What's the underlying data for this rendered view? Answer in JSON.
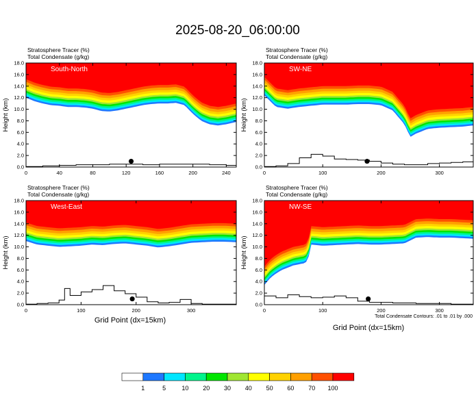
{
  "title": "2025-08-20_06:00:00",
  "panel_headers": {
    "line1": "Stratosphere Tracer   (%)",
    "line2": "Total Condensate   (g/kg)"
  },
  "y_axis_label": "Height (km)",
  "x_axis_label": "Grid Point (dx=15km)",
  "contour_note": "Total Condensate Contours: .01 to .01 by .000",
  "colorbar": {
    "colors": [
      "#ffffff",
      "#1e78ff",
      "#00e6ff",
      "#00f58c",
      "#00e600",
      "#a0e632",
      "#ffff00",
      "#ffd200",
      "#ffa000",
      "#ff5000",
      "#ff0000"
    ],
    "labels": [
      "1",
      "5",
      "10",
      "20",
      "30",
      "40",
      "50",
      "60",
      "70",
      "100"
    ]
  },
  "chart_data": [
    {
      "type": "heatmap",
      "name": "South-North",
      "xlim": [
        0,
        252
      ],
      "ylim": [
        0,
        18
      ],
      "x_ticks": [
        0,
        40,
        80,
        120,
        160,
        200,
        240
      ],
      "y_ticks": [
        0.0,
        2.0,
        4.0,
        6.0,
        8.0,
        10.0,
        12.0,
        14.0,
        16.0,
        18.0
      ],
      "tropopause_x": [
        0,
        10,
        20,
        30,
        40,
        50,
        60,
        70,
        80,
        90,
        100,
        110,
        120,
        130,
        140,
        150,
        160,
        170,
        180,
        190,
        200,
        210,
        220,
        230,
        240,
        252
      ],
      "tropopause_km": [
        15.2,
        14.6,
        14.2,
        13.9,
        13.8,
        13.6,
        13.6,
        13.5,
        13.3,
        12.9,
        12.8,
        13.0,
        13.3,
        13.6,
        13.9,
        14.1,
        14.2,
        14.2,
        14.3,
        13.9,
        12.4,
        11.2,
        10.6,
        10.4,
        10.6,
        11.0
      ],
      "terrain_x": [
        0,
        20,
        40,
        60,
        80,
        100,
        120,
        140,
        160,
        180,
        200,
        220,
        240,
        252
      ],
      "terrain_km": [
        0.1,
        0.2,
        0.3,
        0.4,
        0.4,
        0.5,
        0.5,
        0.4,
        0.5,
        0.5,
        0.5,
        0.4,
        0.3,
        0.2
      ],
      "marker_x": 126,
      "marker_km": 1.0
    },
    {
      "type": "heatmap",
      "name": "SW-NE",
      "xlim": [
        0,
        358
      ],
      "ylim": [
        0,
        18
      ],
      "x_ticks": [
        0,
        100,
        200,
        300
      ],
      "y_ticks": [
        0.0,
        2.0,
        4.0,
        6.0,
        8.0,
        10.0,
        12.0,
        14.0,
        16.0,
        18.0
      ],
      "tropopause_x": [
        0,
        20,
        40,
        60,
        80,
        100,
        120,
        140,
        160,
        180,
        200,
        220,
        240,
        250,
        260,
        280,
        300,
        320,
        340,
        358
      ],
      "tropopause_km": [
        15.6,
        13.6,
        13.3,
        13.6,
        13.8,
        14.0,
        14.0,
        14.0,
        14.1,
        14.1,
        13.9,
        13.0,
        10.6,
        8.4,
        9.0,
        9.8,
        10.0,
        10.1,
        10.2,
        10.4
      ],
      "terrain_x": [
        0,
        20,
        40,
        60,
        80,
        100,
        120,
        140,
        160,
        180,
        200,
        220,
        240,
        260,
        280,
        300,
        320,
        340,
        358
      ],
      "terrain_km": [
        0.1,
        0.2,
        0.6,
        1.6,
        2.2,
        1.9,
        1.4,
        1.3,
        1.2,
        1.0,
        0.7,
        0.5,
        0.4,
        0.4,
        0.6,
        0.7,
        0.8,
        0.9,
        0.8
      ],
      "marker_x": 176,
      "marker_km": 1.0
    },
    {
      "type": "heatmap",
      "name": "West-East",
      "xlim": [
        0,
        382
      ],
      "ylim": [
        0,
        18
      ],
      "x_ticks": [
        0,
        100,
        200,
        300
      ],
      "y_ticks": [
        0.0,
        2.0,
        4.0,
        6.0,
        8.0,
        10.0,
        12.0,
        14.0,
        16.0,
        18.0
      ],
      "tropopause_x": [
        0,
        20,
        40,
        60,
        80,
        100,
        120,
        140,
        160,
        180,
        200,
        220,
        240,
        260,
        280,
        300,
        320,
        340,
        360,
        382
      ],
      "tropopause_km": [
        14.2,
        13.6,
        13.4,
        13.2,
        13.3,
        13.4,
        13.6,
        13.5,
        13.7,
        13.8,
        13.6,
        13.4,
        13.1,
        13.3,
        13.6,
        13.9,
        14.0,
        14.1,
        14.1,
        14.0
      ],
      "terrain_x": [
        0,
        20,
        40,
        60,
        70,
        80,
        100,
        120,
        140,
        160,
        180,
        200,
        220,
        240,
        260,
        280,
        300,
        320,
        340,
        360,
        382
      ],
      "terrain_km": [
        0.1,
        0.2,
        0.3,
        0.8,
        2.8,
        1.6,
        2.2,
        2.6,
        3.3,
        2.4,
        1.9,
        1.3,
        0.5,
        0.3,
        0.4,
        0.9,
        0.2,
        0.1,
        0.1,
        0.1,
        0.1
      ],
      "marker_x": 193,
      "marker_km": 1.0
    },
    {
      "type": "heatmap",
      "name": "NW-SE",
      "xlim": [
        0,
        358
      ],
      "ylim": [
        0,
        18
      ],
      "x_ticks": [
        0,
        100,
        200,
        300
      ],
      "y_ticks": [
        0.0,
        2.0,
        4.0,
        6.0,
        8.0,
        10.0,
        12.0,
        14.0,
        16.0,
        18.0
      ],
      "tropopause_x": [
        0,
        10,
        20,
        30,
        40,
        50,
        60,
        70,
        75,
        80,
        100,
        120,
        140,
        160,
        180,
        200,
        220,
        240,
        260,
        280,
        300,
        320,
        340,
        358
      ],
      "tropopause_km": [
        6.6,
        7.8,
        8.6,
        9.2,
        9.6,
        10.0,
        10.2,
        10.4,
        11.0,
        13.6,
        13.4,
        13.5,
        13.6,
        13.7,
        13.6,
        13.6,
        13.7,
        13.8,
        14.8,
        14.9,
        14.8,
        14.8,
        14.7,
        14.6
      ],
      "terrain_x": [
        0,
        20,
        40,
        60,
        80,
        100,
        120,
        140,
        160,
        180,
        200,
        220,
        240,
        260,
        280,
        300,
        320,
        340,
        358
      ],
      "terrain_km": [
        1.5,
        1.2,
        1.7,
        1.4,
        1.2,
        1.3,
        1.5,
        1.2,
        0.6,
        0.4,
        0.4,
        0.3,
        0.3,
        0.2,
        0.2,
        0.2,
        0.1,
        0.1,
        0.1
      ],
      "marker_x": 178,
      "marker_km": 1.0
    }
  ]
}
